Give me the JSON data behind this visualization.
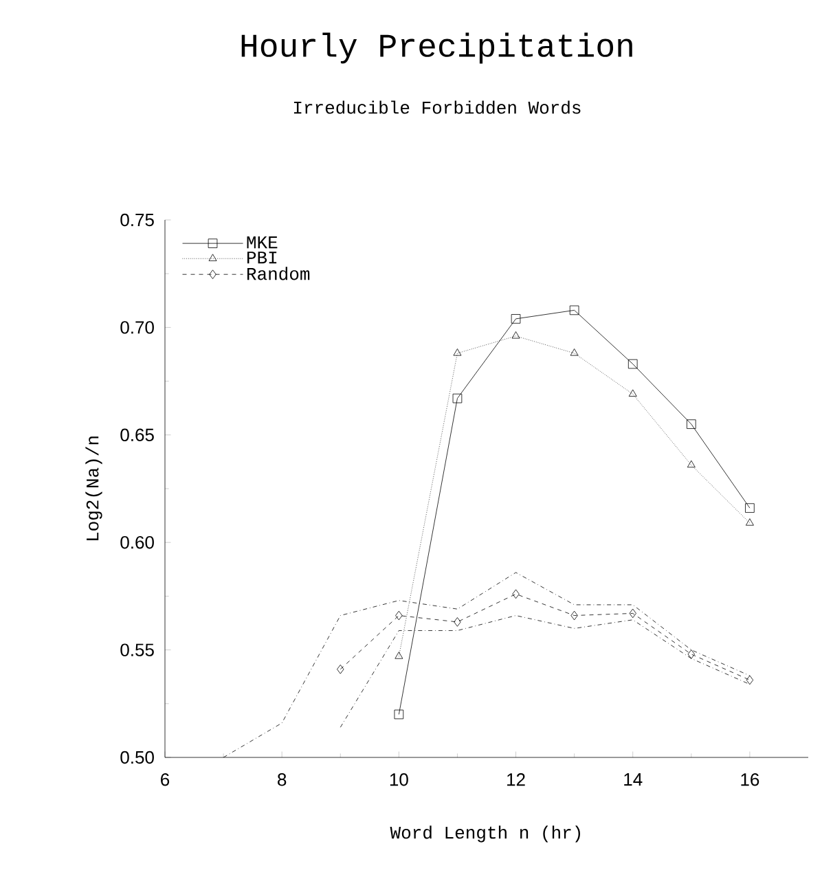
{
  "chart_data": {
    "type": "line",
    "title": "Hourly Precipitation",
    "subtitle": "Irreducible Forbidden Words",
    "xlabel": "Word Length n (hr)",
    "ylabel": "Log2(Na)/n",
    "x": [
      7,
      8,
      9,
      10,
      11,
      12,
      13,
      14,
      15,
      16
    ],
    "series": [
      {
        "name": "MKE",
        "color": "#000000",
        "marker": "square",
        "line_style": "solid",
        "values": [
          null,
          null,
          null,
          0.52,
          0.667,
          0.704,
          0.708,
          0.683,
          0.655,
          0.616
        ]
      },
      {
        "name": "PBI",
        "color": "#000000",
        "marker": "triangle",
        "line_style": "dotted",
        "values": [
          null,
          null,
          null,
          0.547,
          0.688,
          0.696,
          0.688,
          0.669,
          0.636,
          0.609
        ]
      },
      {
        "name": "Random",
        "color": "#000000",
        "marker": "diamond",
        "line_style": "dashed",
        "values": [
          null,
          null,
          0.541,
          0.566,
          0.563,
          0.576,
          0.566,
          0.567,
          0.548,
          0.536
        ]
      },
      {
        "color": "#000000",
        "marker": "none",
        "line_style": "dashdot",
        "values": [
          null,
          null,
          0.514,
          0.559,
          0.559,
          0.566,
          0.56,
          0.564,
          0.546,
          0.534
        ]
      },
      {
        "color": "#000000",
        "marker": "none",
        "line_style": "dashdot",
        "values": [
          0.5,
          0.516,
          0.566,
          0.573,
          0.569,
          0.586,
          0.571,
          0.571,
          0.55,
          0.538
        ]
      }
    ],
    "xlim": [
      6,
      17
    ],
    "ylim": [
      0.5,
      0.75
    ],
    "xticks": [
      6,
      8,
      10,
      12,
      14,
      16
    ],
    "yticks": [
      {
        "value": 0.5,
        "label": "0.50"
      },
      {
        "value": 0.55,
        "label": "0.55"
      },
      {
        "value": 0.6,
        "label": "0.60"
      },
      {
        "value": 0.65,
        "label": "0.65"
      },
      {
        "value": 0.7,
        "label": "0.70"
      },
      {
        "value": 0.75,
        "label": "0.75"
      }
    ],
    "legend": "top left",
    "grid": false
  }
}
